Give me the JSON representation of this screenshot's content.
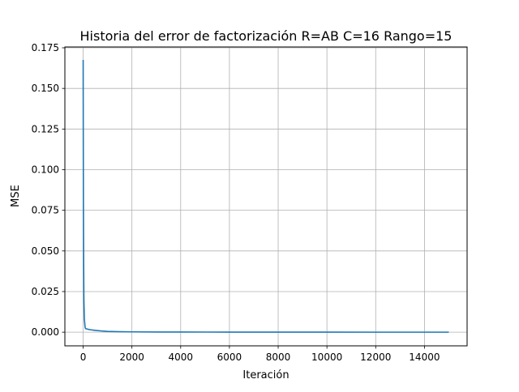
{
  "chart_data": {
    "type": "line",
    "title": "Historia del error de factorización R=AB C=16 Rango=15",
    "xlabel": "Iteración",
    "ylabel": "MSE",
    "xlim": [
      -750,
      15750
    ],
    "ylim": [
      -0.0084,
      0.1755
    ],
    "xticks": [
      0,
      2000,
      4000,
      6000,
      8000,
      10000,
      12000,
      14000
    ],
    "xtick_labels": [
      "0",
      "2000",
      "4000",
      "6000",
      "8000",
      "10000",
      "12000",
      "14000"
    ],
    "yticks": [
      0.0,
      0.025,
      0.05,
      0.075,
      0.1,
      0.125,
      0.15,
      0.175
    ],
    "ytick_labels": [
      "0.000",
      "0.025",
      "0.050",
      "0.075",
      "0.100",
      "0.125",
      "0.150",
      "0.175"
    ],
    "grid": true,
    "series": [
      {
        "color": "#1f77b4",
        "x": [
          0,
          5,
          10,
          20,
          30,
          50,
          80,
          100,
          200,
          300,
          500,
          800,
          1000,
          1500,
          2000,
          3000,
          4000,
          6000,
          8000,
          10000,
          12000,
          14000,
          15000
        ],
        "y": [
          0.1675,
          0.12,
          0.08,
          0.045,
          0.02,
          0.008,
          0.003,
          0.0022,
          0.0018,
          0.0015,
          0.0011,
          0.0007,
          0.0005,
          0.0003,
          0.0002,
          0.00012,
          8e-05,
          5e-05,
          3e-05,
          2e-05,
          1.5e-05,
          1e-05,
          1e-05
        ]
      }
    ]
  }
}
